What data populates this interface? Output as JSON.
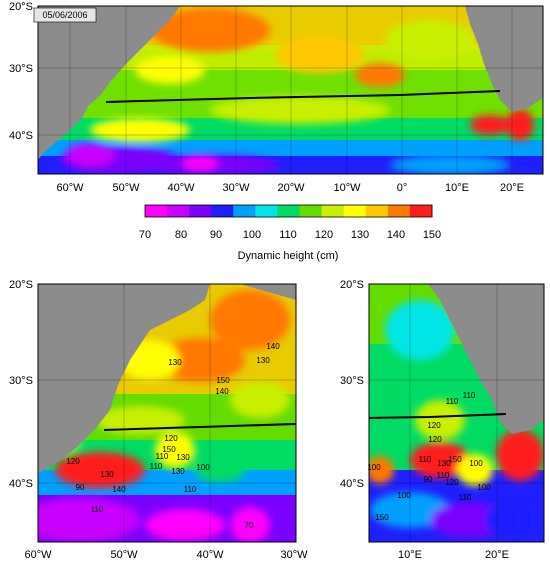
{
  "date_label": "05/06/2006",
  "colorbar": {
    "title": "Dynamic height (cm)",
    "ticks": [
      "70",
      "80",
      "90",
      "100",
      "110",
      "120",
      "130",
      "140",
      "150"
    ],
    "colors": [
      "#ff00ff",
      "#c800ff",
      "#7a00ff",
      "#1e1eff",
      "#00a0ff",
      "#00e6e6",
      "#00dc64",
      "#64dc00",
      "#c8f000",
      "#ffff00",
      "#ffc800",
      "#ff7800",
      "#ff1e1e"
    ]
  },
  "land_color": "#8c8c8c",
  "section_line_color": "#000000",
  "top_map": {
    "lat_ticks": [
      "20°S",
      "30°S",
      "40°S"
    ],
    "lon_ticks": [
      "60°W",
      "50°W",
      "40°W",
      "30°W",
      "20°W",
      "10°W",
      "0°",
      "10°E",
      "20°E"
    ]
  },
  "bottom_left_map": {
    "lat_ticks": [
      "20°S",
      "30°S",
      "40°S"
    ],
    "lon_ticks": [
      "60°W",
      "50°W",
      "40°W",
      "30°W"
    ],
    "contour_labels": [
      "140",
      "130",
      "150",
      "140",
      "130",
      "120",
      "110",
      "130",
      "130",
      "110",
      "130",
      "120",
      "140",
      "90",
      "110",
      "70",
      "100",
      "150",
      "110"
    ]
  },
  "bottom_right_map": {
    "lat_ticks": [
      "20°S",
      "30°S",
      "40°S"
    ],
    "lon_ticks": [
      "10°E",
      "20°E"
    ],
    "contour_labels": [
      "110",
      "110",
      "120",
      "120",
      "110",
      "130",
      "150",
      "100",
      "100",
      "110",
      "120",
      "100",
      "90",
      "100",
      "150",
      "110"
    ]
  }
}
